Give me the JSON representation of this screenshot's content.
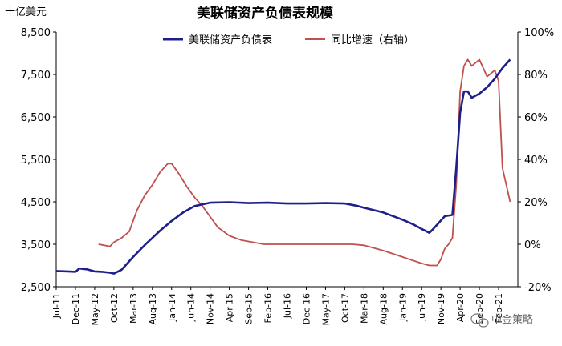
{
  "chart_data": {
    "type": "line",
    "title": "美联储资产负债表规模",
    "left_axis_unit": "十亿美元",
    "left_axis": {
      "ylim": [
        2500,
        8500
      ],
      "ticks": [
        "8,500",
        "7,500",
        "6,500",
        "5,500",
        "4,500",
        "3,500",
        "2,500"
      ]
    },
    "right_axis": {
      "ylim": [
        -20,
        100
      ],
      "ticks": [
        "100%",
        "80%",
        "60%",
        "40%",
        "20%",
        "0%",
        "-20%"
      ]
    },
    "x_tick_labels": [
      "Jul-11",
      "Dec-11",
      "May-12",
      "Oct-12",
      "Mar-13",
      "Aug-13",
      "Jan-14",
      "Jun-14",
      "Nov-14",
      "Apr-15",
      "Sep-15",
      "Feb-16",
      "Jul-16",
      "Dec-16",
      "May-17",
      "Oct-17",
      "Mar-18",
      "Aug-18",
      "Jan-19",
      "Jun-19",
      "Nov-19",
      "Apr-20",
      "Sep-20",
      "Feb-21"
    ],
    "x_range": [
      "Jul-11",
      "Jul-21"
    ],
    "legend_position": "top-center",
    "series": [
      {
        "name": "美联储资产负债表",
        "axis": "left",
        "color": "#1f1f8c",
        "points": [
          [
            "Jul-11",
            2870
          ],
          [
            "Oct-11",
            2860
          ],
          [
            "Dec-11",
            2850
          ],
          [
            "Jan-12",
            2930
          ],
          [
            "Mar-12",
            2910
          ],
          [
            "May-12",
            2860
          ],
          [
            "Jul-12",
            2850
          ],
          [
            "Sep-12",
            2830
          ],
          [
            "Oct-12",
            2810
          ],
          [
            "Dec-12",
            2900
          ],
          [
            "Mar-13",
            3200
          ],
          [
            "Jun-13",
            3480
          ],
          [
            "Aug-13",
            3650
          ],
          [
            "Oct-13",
            3820
          ],
          [
            "Jan-14",
            4050
          ],
          [
            "Apr-14",
            4250
          ],
          [
            "Jul-14",
            4400
          ],
          [
            "Oct-14",
            4460
          ],
          [
            "Nov-14",
            4480
          ],
          [
            "Apr-15",
            4490
          ],
          [
            "Sep-15",
            4470
          ],
          [
            "Feb-16",
            4480
          ],
          [
            "Jul-16",
            4460
          ],
          [
            "Dec-16",
            4460
          ],
          [
            "May-17",
            4470
          ],
          [
            "Oct-17",
            4460
          ],
          [
            "Jan-18",
            4410
          ],
          [
            "Mar-18",
            4360
          ],
          [
            "Aug-18",
            4250
          ],
          [
            "Jan-19",
            4080
          ],
          [
            "Apr-19",
            3960
          ],
          [
            "Jun-19",
            3860
          ],
          [
            "Aug-19",
            3770
          ],
          [
            "Sep-19",
            3860
          ],
          [
            "Oct-19",
            3960
          ],
          [
            "Nov-19",
            4060
          ],
          [
            "Dec-19",
            4160
          ],
          [
            "Feb-20",
            4190
          ],
          [
            "Mar-20",
            5300
          ],
          [
            "Apr-20",
            6600
          ],
          [
            "May-20",
            7100
          ],
          [
            "Jun-20",
            7100
          ],
          [
            "Jul-20",
            6950
          ],
          [
            "Sep-20",
            7050
          ],
          [
            "Nov-20",
            7200
          ],
          [
            "Jan-21",
            7400
          ],
          [
            "Mar-21",
            7650
          ],
          [
            "May-21",
            7850
          ]
        ]
      },
      {
        "name": "同比增速（右轴）",
        "axis": "right",
        "color": "#c0504d",
        "points": [
          [
            "Jun-12",
            0
          ],
          [
            "Sep-12",
            -1
          ],
          [
            "Oct-12",
            1
          ],
          [
            "Dec-12",
            3
          ],
          [
            "Feb-13",
            6
          ],
          [
            "Apr-13",
            16
          ],
          [
            "Jun-13",
            23
          ],
          [
            "Aug-13",
            28
          ],
          [
            "Oct-13",
            34
          ],
          [
            "Dec-13",
            38
          ],
          [
            "Jan-14",
            38
          ],
          [
            "Mar-14",
            33
          ],
          [
            "May-14",
            27
          ],
          [
            "Jul-14",
            22
          ],
          [
            "Sep-14",
            18
          ],
          [
            "Nov-14",
            13
          ],
          [
            "Jan-15",
            8
          ],
          [
            "Apr-15",
            4
          ],
          [
            "Jul-15",
            2
          ],
          [
            "Oct-15",
            1
          ],
          [
            "Jan-16",
            0
          ],
          [
            "Apr-16",
            0
          ],
          [
            "Dec-16",
            0
          ],
          [
            "May-17",
            0
          ],
          [
            "Dec-17",
            0
          ],
          [
            "Mar-18",
            -0.5
          ],
          [
            "Aug-18",
            -3
          ],
          [
            "Jan-19",
            -6
          ],
          [
            "Jun-19",
            -9
          ],
          [
            "Aug-19",
            -10
          ],
          [
            "Oct-19",
            -10
          ],
          [
            "Nov-19",
            -7
          ],
          [
            "Dec-19",
            -2
          ],
          [
            "Jan-20",
            0
          ],
          [
            "Feb-20",
            3
          ],
          [
            "Mar-20",
            28
          ],
          [
            "Apr-20",
            72
          ],
          [
            "May-20",
            84
          ],
          [
            "Jun-20",
            87
          ],
          [
            "Jul-20",
            84
          ],
          [
            "Sep-20",
            87
          ],
          [
            "Nov-20",
            79
          ],
          [
            "Jan-21",
            82
          ],
          [
            "Feb-21",
            77
          ],
          [
            "Mar-21",
            36
          ],
          [
            "May-21",
            20
          ]
        ]
      }
    ]
  },
  "watermark": "中金策略",
  "watermark_icon": "wechat-icon"
}
